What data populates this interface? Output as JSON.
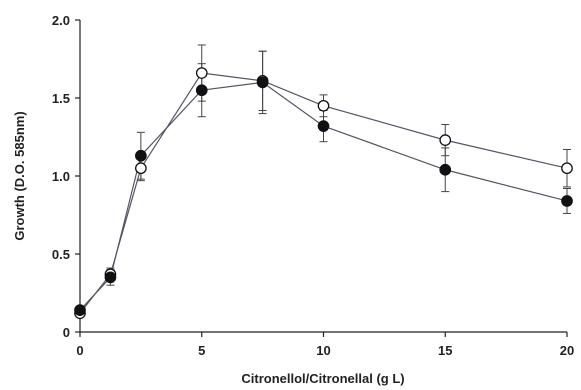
{
  "chart_data": {
    "type": "line",
    "xlabel": "Citronellol/Citronellal (g L)",
    "ylabel": "Growth (D.O. 585nm)",
    "xlim": [
      0,
      20
    ],
    "ylim": [
      0,
      2.0
    ],
    "xticks": [
      "0",
      "5",
      "10",
      "15",
      "20"
    ],
    "yticks": [
      "0",
      "0.5",
      "1.0",
      "1.5",
      "2.0"
    ],
    "grid": false,
    "legend": "none",
    "series": [
      {
        "marker": "open-circle",
        "x": [
          0,
          1.25,
          2.5,
          5,
          7.5,
          10,
          15,
          20
        ],
        "y": [
          0.12,
          0.37,
          1.05,
          1.66,
          1.61,
          1.45,
          1.23,
          1.05
        ],
        "error": [
          0.02,
          0.04,
          0.08,
          0.18,
          0.19,
          0.07,
          0.1,
          0.12
        ]
      },
      {
        "marker": "filled-circle",
        "x": [
          0,
          1.25,
          2.5,
          5,
          7.5,
          10,
          15,
          20
        ],
        "y": [
          0.14,
          0.35,
          1.13,
          1.55,
          1.6,
          1.32,
          1.04,
          0.84
        ],
        "error": [
          0.02,
          0.05,
          0.15,
          0.17,
          0.2,
          0.1,
          0.14,
          0.08
        ]
      }
    ]
  }
}
